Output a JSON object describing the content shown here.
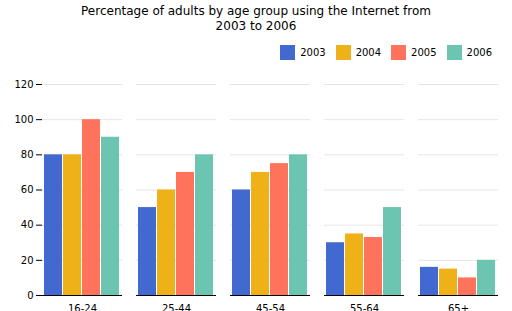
{
  "chart_data": {
    "type": "bar",
    "title": "Percentage of adults by age group using the Internet from\n2003 to 2006",
    "categories": [
      "16-24",
      "25-44",
      "45-54",
      "55-64",
      "65+"
    ],
    "series": [
      {
        "name": "2003",
        "values": [
          80,
          50,
          60,
          30,
          16
        ]
      },
      {
        "name": "2004",
        "values": [
          80,
          60,
          70,
          35,
          15
        ]
      },
      {
        "name": "2005",
        "values": [
          100,
          70,
          75,
          33,
          10
        ]
      },
      {
        "name": "2006",
        "values": [
          90,
          80,
          80,
          50,
          20
        ]
      }
    ],
    "ylim": [
      0,
      120
    ],
    "yticks": [
      0,
      20,
      40,
      60,
      80,
      100,
      120
    ],
    "grid": true,
    "legend": "upper right"
  }
}
